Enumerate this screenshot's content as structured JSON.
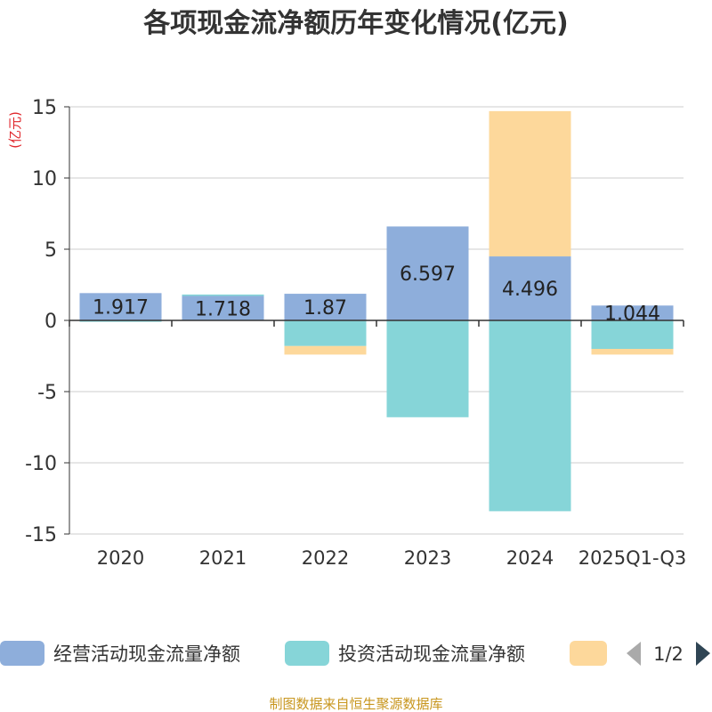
{
  "chart_data": {
    "type": "bar",
    "stacked": true,
    "title": "各项现金流净额历年变化情况(亿元)",
    "ylabel": "(亿元)",
    "xlabel": "",
    "ylim": [
      -15,
      15
    ],
    "yticks": [
      15,
      10,
      5,
      0,
      -5,
      -10,
      -15
    ],
    "categories": [
      "2020",
      "2021",
      "2022",
      "2023",
      "2024",
      "2025Q1-Q3"
    ],
    "series": [
      {
        "name": "经营活动现金流量净额",
        "color": "#8eaedb",
        "values": [
          1.917,
          1.718,
          1.87,
          6.597,
          4.496,
          1.044
        ],
        "labels": [
          "1.917",
          "1.718",
          "1.87",
          "6.597",
          "4.496",
          "1.044"
        ]
      },
      {
        "name": "投资活动现金流量净额",
        "color": "#86d5d8",
        "values": [
          -0.1,
          0.1,
          -1.8,
          -6.8,
          -13.4,
          -2.0
        ]
      },
      {
        "name": "",
        "color": "#fdd89b",
        "values": [
          0,
          0,
          -0.6,
          0,
          10.2,
          -0.4
        ]
      }
    ],
    "legend": {
      "page": "1/2"
    },
    "source": "制图数据来自恒生聚源数据库"
  }
}
